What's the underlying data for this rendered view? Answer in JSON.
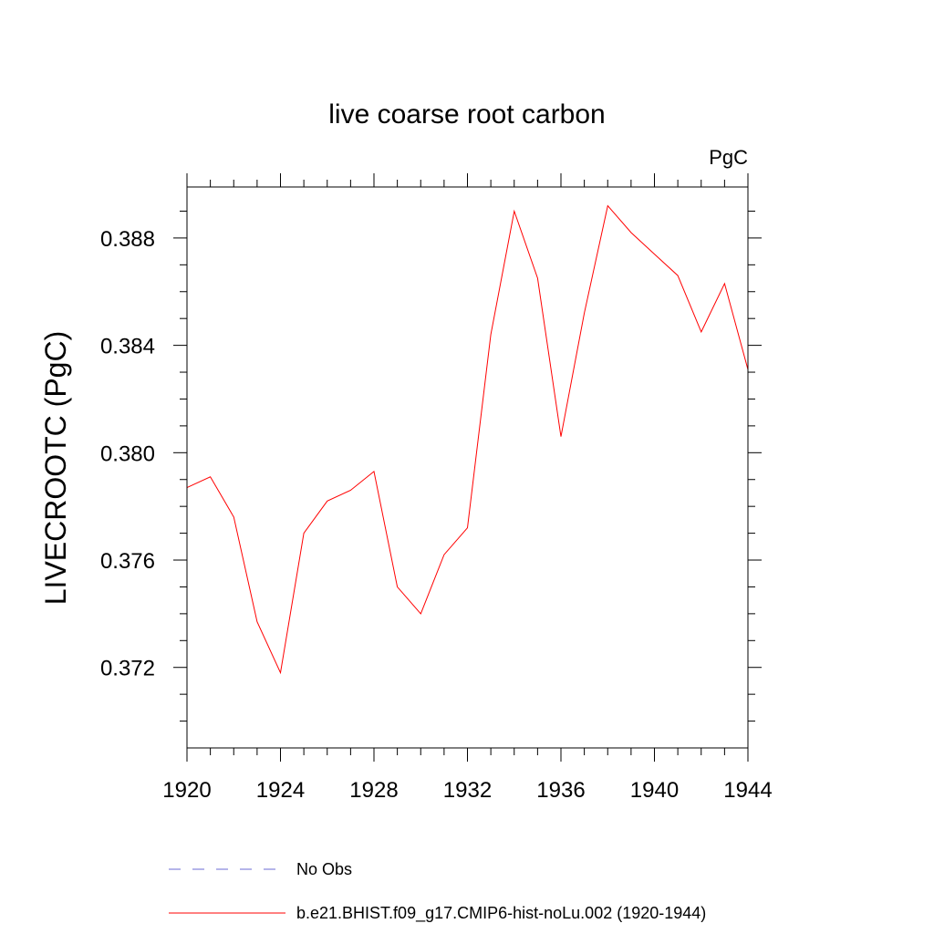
{
  "chart_data": {
    "type": "line",
    "title": "live coarse root carbon",
    "units": "PgC",
    "ylabel": "LIVECROOTC  (PgC)",
    "xlabel": "",
    "xlim": [
      1920,
      1944
    ],
    "ylim": [
      0.369,
      0.3899
    ],
    "xticks": [
      1920,
      1924,
      1928,
      1932,
      1936,
      1940,
      1944
    ],
    "yticks": [
      0.372,
      0.376,
      0.38,
      0.384,
      0.388
    ],
    "ytick_labels": [
      "0.372",
      "0.376",
      "0.380",
      "0.384",
      "0.388"
    ],
    "grid": false,
    "legend_position": "bottom",
    "series": [
      {
        "name": "b.e21.BHIST.f09_g17.CMIP6-hist-noLu.002 (1920-1944)",
        "color": "#ff0000",
        "style": "solid",
        "x": [
          1920,
          1921,
          1922,
          1923,
          1924,
          1925,
          1926,
          1927,
          1928,
          1929,
          1930,
          1931,
          1932,
          1933,
          1934,
          1935,
          1936,
          1937,
          1938,
          1939,
          1940,
          1941,
          1942,
          1943,
          1944
        ],
        "values": [
          0.3787,
          0.3791,
          0.3776,
          0.3737,
          0.3718,
          0.377,
          0.3782,
          0.3786,
          0.3793,
          0.375,
          0.374,
          0.3762,
          0.3772,
          0.3844,
          0.389,
          0.3865,
          0.3806,
          0.3852,
          0.3892,
          0.3882,
          0.3874,
          0.3866,
          0.3845,
          0.3863,
          0.3831
        ]
      }
    ],
    "legend": [
      {
        "label": "No Obs",
        "color": "#6b6bd6",
        "style": "dashed"
      },
      {
        "label": "b.e21.BHIST.f09_g17.CMIP6-hist-noLu.002 (1920-1944)",
        "color": "#ff0000",
        "style": "solid"
      }
    ]
  }
}
